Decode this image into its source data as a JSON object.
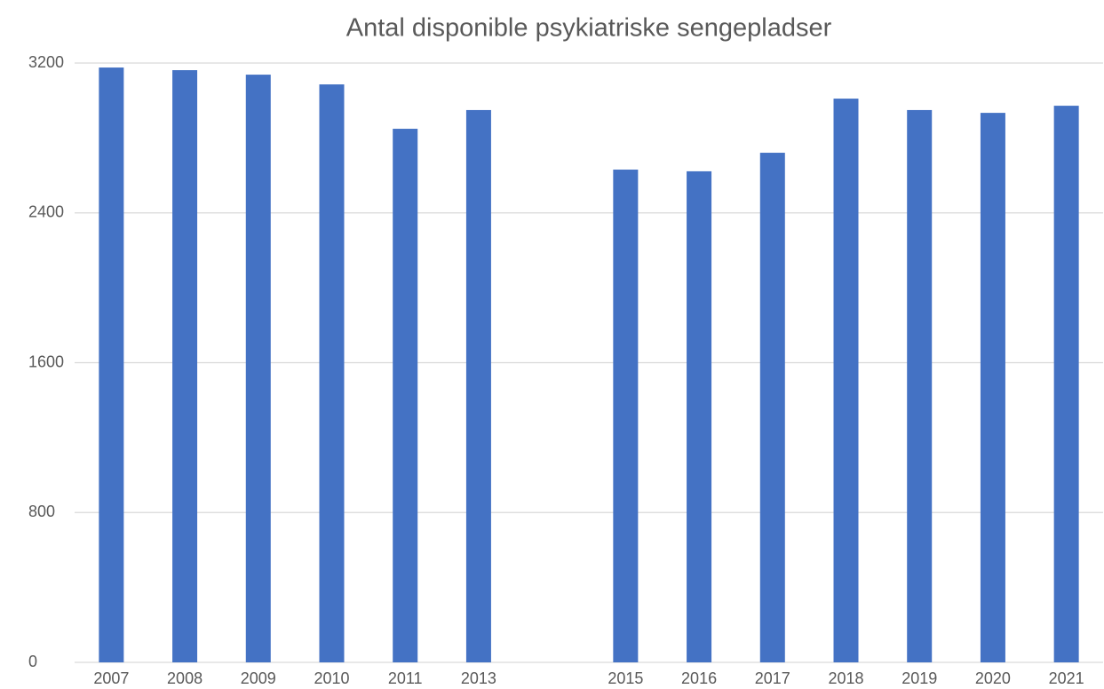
{
  "chart_data": {
    "type": "bar",
    "title": "Antal disponible psykiatriske sengepladser",
    "categories": [
      "2007",
      "2008",
      "2009",
      "2010",
      "2011",
      "2013",
      null,
      "2015",
      "2016",
      "2017",
      "2018",
      "2019",
      "2020",
      "2021"
    ],
    "values": [
      3176,
      3162,
      3138,
      3086,
      2849,
      2949,
      null,
      2631,
      2622,
      2721,
      3010,
      2949,
      2934,
      2972
    ],
    "color": "#4472c4",
    "ylim": [
      0,
      3200
    ],
    "yticks": [
      0,
      800,
      1600,
      2400,
      3200
    ],
    "grid": true
  }
}
